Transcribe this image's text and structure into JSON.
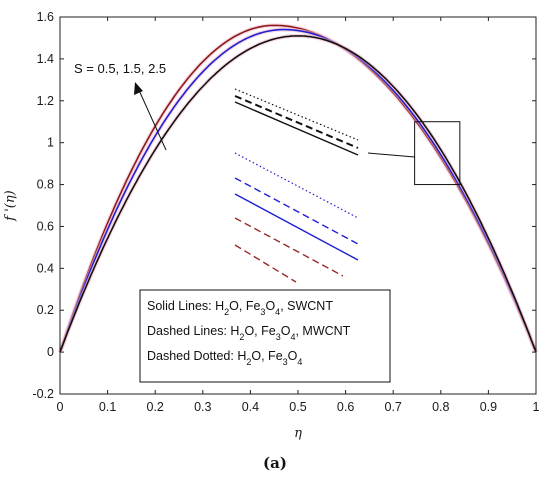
{
  "chart_data": {
    "type": "line",
    "title": "",
    "xlabel": "η",
    "ylabel": "f '(η)",
    "xlim": [
      0,
      1
    ],
    "ylim": [
      -0.2,
      1.6
    ],
    "xticks": [
      "0",
      "0.1",
      "0.2",
      "0.3",
      "0.4",
      "0.5",
      "0.6",
      "0.7",
      "0.8",
      "0.9",
      "1"
    ],
    "yticks": [
      "-0.2",
      "0",
      "0.2",
      "0.4",
      "0.6",
      "0.8",
      "1",
      "1.2",
      "1.4",
      "1.6"
    ],
    "grid": false,
    "annotation": "S = 0.5, 1.5, 2.5",
    "legend_box": {
      "placement": "bottom-center",
      "lines": [
        {
          "prefix": "Solid Lines:",
          "fluid": "H2O, Fe3O4, SWCNT"
        },
        {
          "prefix": "Dashed Lines:",
          "fluid": "H2O, Fe3O4, MWCNT"
        },
        {
          "prefix": "Dashed Dotted:",
          "fluid": "H2O, Fe3O4"
        }
      ]
    },
    "series": [
      {
        "S": 0.5,
        "color": "#8b1a1a",
        "peak_x": 0.45,
        "peak_y": 1.56
      },
      {
        "S": 1.5,
        "color": "#1f1fd6",
        "peak_x": 0.47,
        "peak_y": 1.54
      },
      {
        "S": 2.5,
        "color": "#111111",
        "peak_x": 0.5,
        "peak_y": 1.51
      }
    ],
    "zoom_region": {
      "x": [
        0.745,
        0.84
      ],
      "y": [
        0.8,
        1.1
      ]
    }
  },
  "caption": "(a)"
}
